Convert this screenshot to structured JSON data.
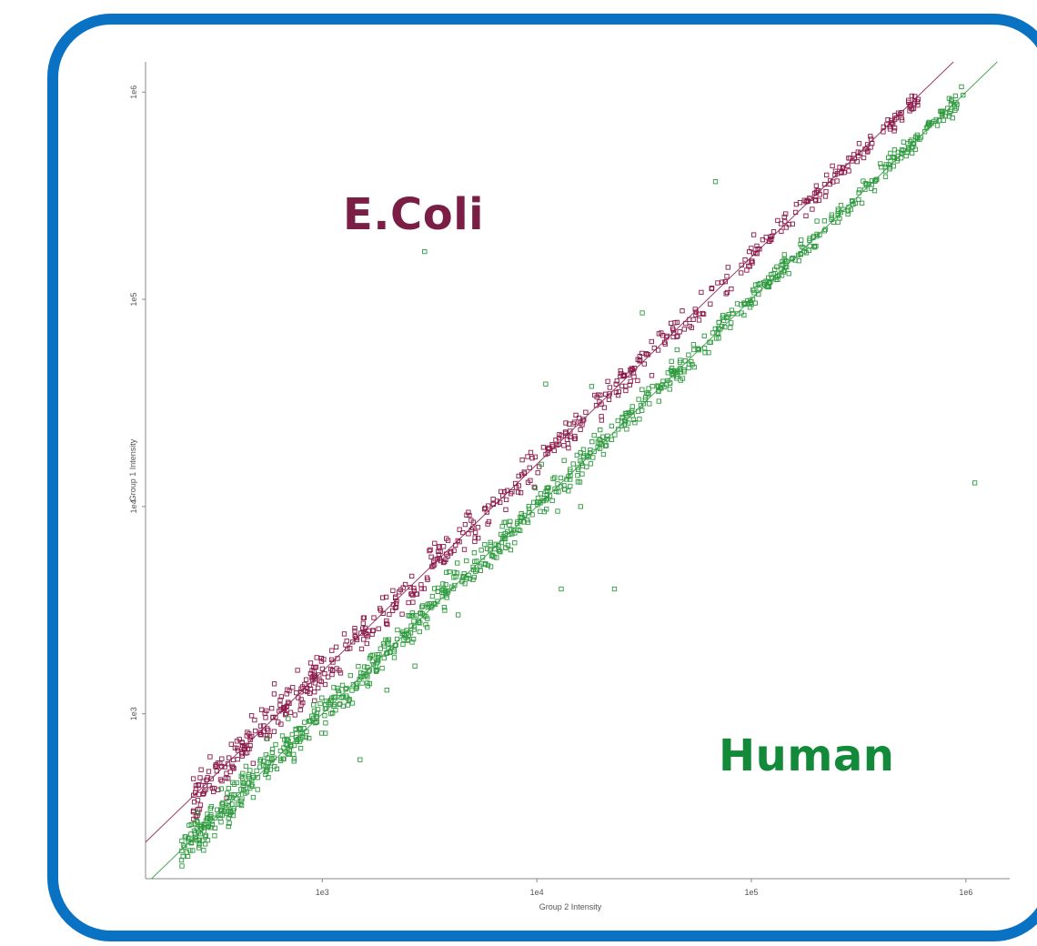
{
  "chart_data": {
    "type": "scatter",
    "title": "",
    "xlabel": "Group 2 Intensity",
    "ylabel": "Group 1 Intensity",
    "x_scale": "log",
    "y_scale": "log",
    "xlim": [
      150,
      1600000
    ],
    "ylim": [
      160,
      1400000
    ],
    "x_ticks": [
      1000,
      10000,
      100000,
      1000000
    ],
    "x_tick_labels": [
      "1e3",
      "1e4",
      "1e5",
      "1e6"
    ],
    "y_ticks": [
      1000,
      10000,
      100000,
      1000000
    ],
    "y_tick_labels": [
      "1e3",
      "1e4",
      "1e5",
      "1e6"
    ],
    "grid": false,
    "legend": "none",
    "annotations": [
      {
        "text": "E.Coli",
        "color": "#7b1e46"
      },
      {
        "text": "Human",
        "color": "#138a3a"
      }
    ],
    "series": [
      {
        "color": "#8b1a4a",
        "marker": "open-square",
        "trend_line": {
          "slope": 1,
          "ratio_y_over_x": 1.6
        },
        "points_generated": {
          "count": 620,
          "x_range": [
            250,
            600000
          ],
          "ratio_y_over_x": 1.6,
          "log10_scatter": 0.05
        },
        "outliers": []
      },
      {
        "color": "#2e9a3e",
        "marker": "open-square",
        "trend_line": {
          "slope": 1,
          "ratio_y_over_x": 1.0
        },
        "points_generated": {
          "count": 900,
          "x_range": [
            220,
            980000
          ],
          "ratio_y_over_x": 1.0,
          "log10_scatter": 0.045
        },
        "outliers": [
          [
            3000,
            170000
          ],
          [
            68000,
            370000
          ],
          [
            31000,
            86000
          ],
          [
            11000,
            39000
          ],
          [
            1100000,
            13000
          ],
          [
            10500,
            16000
          ],
          [
            2000,
            1300
          ],
          [
            13000,
            4000
          ],
          [
            23000,
            4000
          ],
          [
            4300,
            3000
          ],
          [
            1500,
            600
          ],
          [
            2700,
            1700
          ],
          [
            12500,
            9500
          ],
          [
            18000,
            38000
          ],
          [
            16000,
            10000
          ]
        ]
      }
    ]
  }
}
